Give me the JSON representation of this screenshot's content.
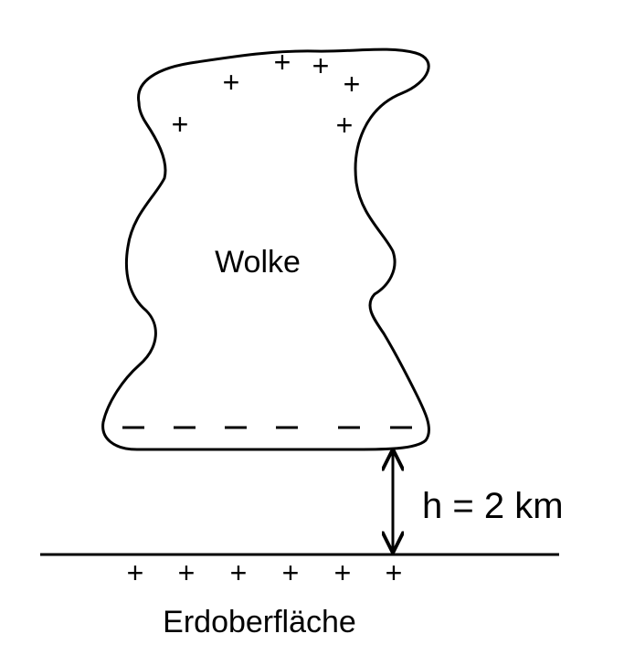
{
  "labels": {
    "cloud": "Wolke",
    "height": "h = 2 km",
    "ground": "Erdoberfläche"
  },
  "cloud_top_charges": [
    "+",
    "+",
    "+",
    "+",
    "+",
    "+",
    "+"
  ],
  "cloud_bottom_charges": [
    "−",
    "−",
    "−",
    "−",
    "−",
    "−"
  ],
  "ground_charges": [
    "+",
    "+",
    "+",
    "+",
    "+",
    "+"
  ],
  "colors": {
    "stroke": "#000000",
    "background": "#ffffff"
  }
}
